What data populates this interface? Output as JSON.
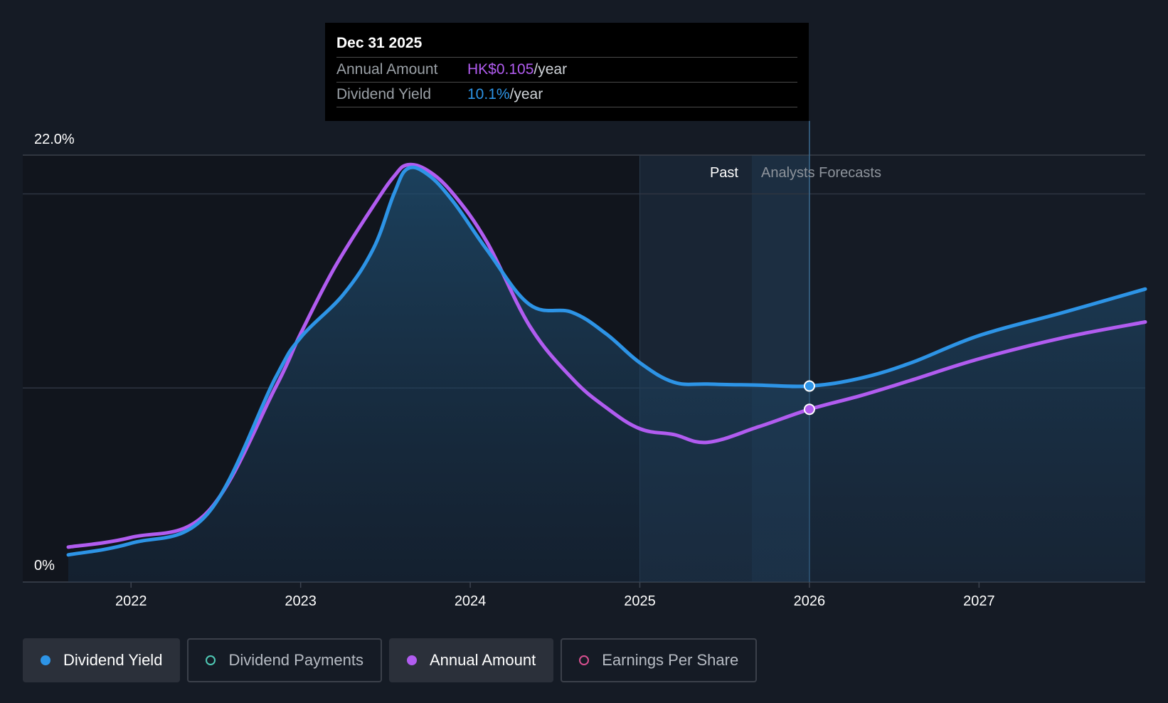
{
  "tooltip": {
    "date": "Dec 31 2025",
    "rows": [
      {
        "label": "Annual Amount",
        "value": "HK$0.105",
        "unit": "/year"
      },
      {
        "label": "Dividend Yield",
        "value": "10.1%",
        "unit": "/year"
      }
    ]
  },
  "regions": {
    "past_label": "Past",
    "forecast_label": "Analysts Forecasts"
  },
  "legend": [
    {
      "label": "Dividend Yield",
      "color": "#2d94e6",
      "active": true,
      "filled": true
    },
    {
      "label": "Dividend Payments",
      "color": "#4fc9b5",
      "active": false,
      "filled": false
    },
    {
      "label": "Annual Amount",
      "color": "#b15cf0",
      "active": true,
      "filled": true
    },
    {
      "label": "Earnings Per Share",
      "color": "#d64f8f",
      "active": false,
      "filled": false
    }
  ],
  "colors": {
    "dividend_yield": "#2d94e6",
    "annual_amount": "#b15cf0",
    "background": "#151b25",
    "gridline": "#2e3541"
  },
  "chart_data": {
    "type": "line",
    "title": "",
    "xlabel": "",
    "ylabel": "",
    "ylim": [
      0,
      22
    ],
    "y_tick_labels": [
      "22.0%",
      "0%"
    ],
    "x_tick_labels": [
      "2022",
      "2023",
      "2024",
      "2025",
      "2026",
      "2027"
    ],
    "xlim": [
      2021.63,
      2027.98
    ],
    "past_start": 2025.0,
    "forecast_start": 2025.66,
    "current": 2026.0,
    "series": [
      {
        "name": "Dividend Yield",
        "x": [
          2021.63,
          2022.0,
          2022.45,
          2022.85,
          2023.0,
          2023.25,
          2023.43,
          2023.55,
          2023.63,
          2023.75,
          2023.9,
          2024.1,
          2024.35,
          2024.6,
          2024.8,
          2025.0,
          2025.2,
          2025.4,
          2025.7,
          2026.0,
          2026.3,
          2026.6,
          2027.0,
          2027.5,
          2027.98
        ],
        "y": [
          1.4,
          2.0,
          3.5,
          10.5,
          12.6,
          14.8,
          17.2,
          20.0,
          21.3,
          21.0,
          19.6,
          17.1,
          14.3,
          13.9,
          12.8,
          11.3,
          10.3,
          10.2,
          10.15,
          10.1,
          10.5,
          11.3,
          12.7,
          13.9,
          15.1
        ]
      },
      {
        "name": "Annual Amount",
        "x": [
          2021.63,
          2022.0,
          2022.45,
          2022.85,
          2023.0,
          2023.2,
          2023.43,
          2023.55,
          2023.63,
          2023.75,
          2023.9,
          2024.1,
          2024.35,
          2024.6,
          2024.8,
          2025.0,
          2025.2,
          2025.4,
          2025.7,
          2026.0,
          2026.3,
          2026.6,
          2027.0,
          2027.5,
          2027.98
        ],
        "y": [
          1.8,
          2.3,
          3.6,
          10.0,
          12.8,
          16.2,
          19.4,
          20.9,
          21.5,
          21.2,
          20.0,
          17.5,
          13.2,
          10.5,
          9.0,
          7.9,
          7.6,
          7.2,
          8.0,
          8.9,
          9.6,
          10.4,
          11.5,
          12.6,
          13.4
        ]
      }
    ]
  }
}
